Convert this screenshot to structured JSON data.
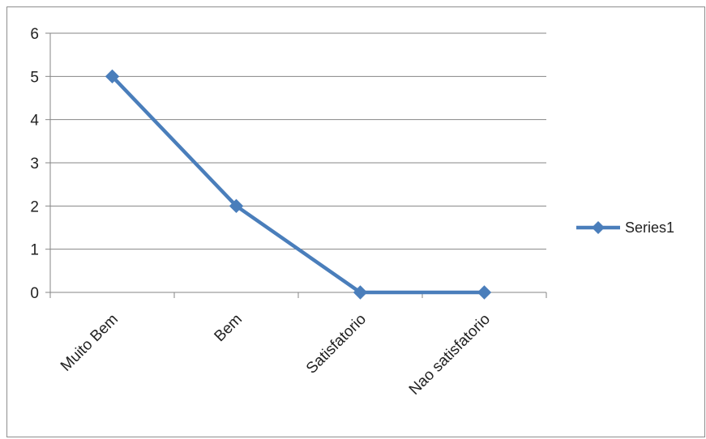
{
  "chart_data": {
    "type": "line",
    "title": "",
    "xlabel": "",
    "ylabel": "",
    "categories": [
      "Muito Bem",
      "Bem",
      "Satisfatorio",
      "Nao satisfatorio"
    ],
    "series": [
      {
        "name": "Series1",
        "values": [
          5,
          2,
          0,
          0
        ],
        "color": "#4a7ebb",
        "marker": "diamond"
      }
    ],
    "ylim": [
      0,
      6
    ],
    "yticks": [
      0,
      1,
      2,
      3,
      4,
      5,
      6
    ],
    "grid": true,
    "legend": "right"
  }
}
